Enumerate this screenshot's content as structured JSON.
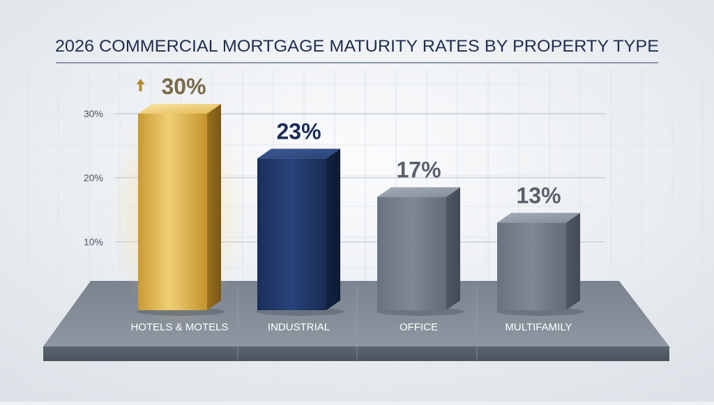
{
  "chart_data": {
    "type": "bar",
    "title": "2026 COMMERCIAL MORTGAGE MATURITY RATES BY PROPERTY TYPE",
    "categories": [
      "HOTELS & MOTELS",
      "INDUSTRIAL",
      "OFFICE",
      "MULTIFAMILY"
    ],
    "values": [
      30,
      23,
      17,
      13
    ],
    "value_labels": [
      "30%",
      "23%",
      "17%",
      "13%"
    ],
    "yticks": [
      {
        "value": 10,
        "label": "10%"
      },
      {
        "value": 20,
        "label": "20%"
      },
      {
        "value": 30,
        "label": "30%"
      }
    ],
    "ylim": [
      0,
      30
    ],
    "grid": true,
    "highlight_icon": "arrow-up-icon",
    "colors": {
      "highlight": "#d4a53a",
      "primary": "#1f3766",
      "secondary": "#6b7685",
      "title": "#1f2d4f"
    }
  }
}
